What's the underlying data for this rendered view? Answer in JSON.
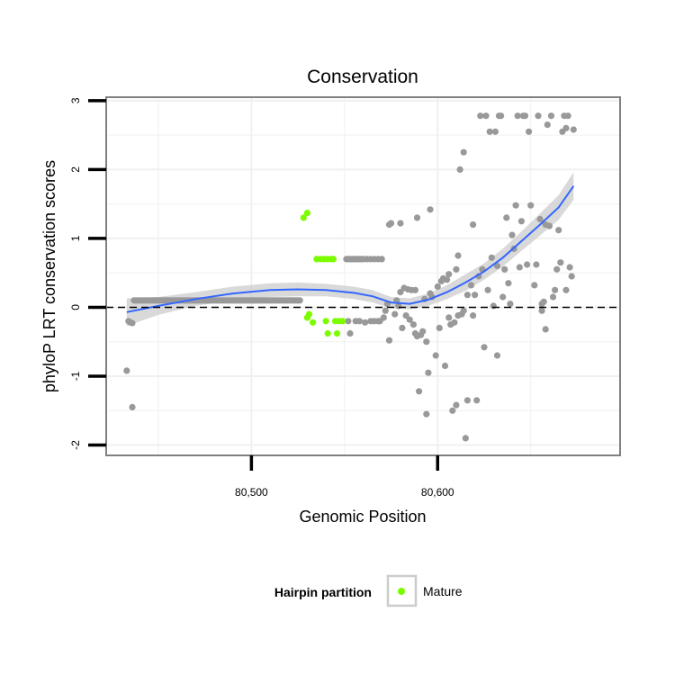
{
  "chart_data": {
    "type": "scatter",
    "title": "Conservation",
    "xlabel": "Genomic Position",
    "ylabel": "phyloP LRT conservation scores",
    "xlim": [
      80422,
      80698
    ],
    "ylim": [
      -2.15,
      3.05
    ],
    "x_ticks": [
      80500,
      80600
    ],
    "x_tick_labels": [
      "80,500",
      "80,600"
    ],
    "y_ticks": [
      -2,
      -1,
      0,
      1,
      2,
      3
    ],
    "y_tick_labels": [
      "-2",
      "-1",
      "0",
      "1",
      "2",
      "3"
    ],
    "grid": true,
    "reference_line": {
      "y": 0,
      "style": "dashed"
    },
    "legend": {
      "title": "Hairpin partition",
      "position": "bottom",
      "entries": [
        "Mature"
      ]
    },
    "colors": {
      "other": "#999999",
      "mature": "#7cfc00",
      "smooth": "#3366ff",
      "ribbon": "#cccccc",
      "panel_border": "#808080"
    },
    "series": [
      {
        "role": "other",
        "color": "#999999",
        "points": [
          [
            80433,
            -0.92
          ],
          [
            80434,
            -0.2
          ],
          [
            80435,
            -0.22
          ],
          [
            80436,
            -0.23
          ],
          [
            80436,
            -1.45
          ],
          [
            80437,
            0.1
          ],
          [
            80438,
            0.1
          ],
          [
            80439,
            0.1
          ],
          [
            80440,
            0.1
          ],
          [
            80441,
            0.1
          ],
          [
            80442,
            0.1
          ],
          [
            80443,
            0.1
          ],
          [
            80444,
            0.1
          ],
          [
            80445,
            0.1
          ],
          [
            80446,
            0.1
          ],
          [
            80447,
            0.1
          ],
          [
            80448,
            0.1
          ],
          [
            80449,
            0.1
          ],
          [
            80450,
            0.1
          ],
          [
            80451,
            0.1
          ],
          [
            80452,
            0.1
          ],
          [
            80453,
            0.1
          ],
          [
            80454,
            0.1
          ],
          [
            80455,
            0.1
          ],
          [
            80456,
            0.1
          ],
          [
            80457,
            0.1
          ],
          [
            80458,
            0.1
          ],
          [
            80459,
            0.1
          ],
          [
            80460,
            0.1
          ],
          [
            80461,
            0.1
          ],
          [
            80462,
            0.1
          ],
          [
            80463,
            0.1
          ],
          [
            80464,
            0.1
          ],
          [
            80465,
            0.1
          ],
          [
            80466,
            0.1
          ],
          [
            80467,
            0.1
          ],
          [
            80468,
            0.1
          ],
          [
            80469,
            0.1
          ],
          [
            80470,
            0.1
          ],
          [
            80471,
            0.1
          ],
          [
            80472,
            0.1
          ],
          [
            80473,
            0.1
          ],
          [
            80474,
            0.1
          ],
          [
            80475,
            0.1
          ],
          [
            80476,
            0.1
          ],
          [
            80477,
            0.1
          ],
          [
            80478,
            0.1
          ],
          [
            80479,
            0.1
          ],
          [
            80480,
            0.1
          ],
          [
            80481,
            0.1
          ],
          [
            80482,
            0.1
          ],
          [
            80483,
            0.1
          ],
          [
            80484,
            0.1
          ],
          [
            80485,
            0.1
          ],
          [
            80486,
            0.1
          ],
          [
            80487,
            0.1
          ],
          [
            80488,
            0.1
          ],
          [
            80489,
            0.1
          ],
          [
            80490,
            0.1
          ],
          [
            80491,
            0.1
          ],
          [
            80492,
            0.1
          ],
          [
            80493,
            0.1
          ],
          [
            80494,
            0.1
          ],
          [
            80495,
            0.1
          ],
          [
            80496,
            0.1
          ],
          [
            80497,
            0.1
          ],
          [
            80498,
            0.1
          ],
          [
            80499,
            0.1
          ],
          [
            80500,
            0.1
          ],
          [
            80501,
            0.1
          ],
          [
            80502,
            0.1
          ],
          [
            80503,
            0.1
          ],
          [
            80504,
            0.1
          ],
          [
            80505,
            0.1
          ],
          [
            80506,
            0.1
          ],
          [
            80507,
            0.1
          ],
          [
            80508,
            0.1
          ],
          [
            80509,
            0.1
          ],
          [
            80510,
            0.1
          ],
          [
            80511,
            0.1
          ],
          [
            80512,
            0.1
          ],
          [
            80513,
            0.1
          ],
          [
            80514,
            0.1
          ],
          [
            80515,
            0.1
          ],
          [
            80516,
            0.1
          ],
          [
            80517,
            0.1
          ],
          [
            80518,
            0.1
          ],
          [
            80519,
            0.1
          ],
          [
            80520,
            0.1
          ],
          [
            80521,
            0.1
          ],
          [
            80522,
            0.1
          ],
          [
            80523,
            0.1
          ],
          [
            80524,
            0.1
          ],
          [
            80525,
            0.1
          ],
          [
            80526,
            0.1
          ],
          [
            80551,
            0.7
          ],
          [
            80552,
            0.7
          ],
          [
            80553,
            0.7
          ],
          [
            80554,
            0.7
          ],
          [
            80555,
            0.7
          ],
          [
            80556,
            0.7
          ],
          [
            80557,
            0.7
          ],
          [
            80558,
            0.7
          ],
          [
            80559,
            0.7
          ],
          [
            80560,
            0.7
          ],
          [
            80562,
            0.7
          ],
          [
            80564,
            0.7
          ],
          [
            80566,
            0.7
          ],
          [
            80568,
            0.7
          ],
          [
            80570,
            0.7
          ],
          [
            80552,
            -0.2
          ],
          [
            80553,
            -0.38
          ],
          [
            80556,
            -0.2
          ],
          [
            80558,
            -0.2
          ],
          [
            80561,
            -0.22
          ],
          [
            80564,
            -0.2
          ],
          [
            80566,
            -0.2
          ],
          [
            80568,
            -0.2
          ],
          [
            80569,
            -0.2
          ],
          [
            80571,
            -0.15
          ],
          [
            80572,
            -0.05
          ],
          [
            80573,
            0.05
          ],
          [
            80574,
            -0.48
          ],
          [
            80574,
            1.2
          ],
          [
            80575,
            1.22
          ],
          [
            80577,
            -0.1
          ],
          [
            80578,
            0.1
          ],
          [
            80579,
            0.02
          ],
          [
            80580,
            0.22
          ],
          [
            80580,
            1.22
          ],
          [
            80581,
            -0.3
          ],
          [
            80582,
            0.28
          ],
          [
            80583,
            -0.12
          ],
          [
            80584,
            0.26
          ],
          [
            80585,
            -0.18
          ],
          [
            80586,
            0.25
          ],
          [
            80587,
            -0.25
          ],
          [
            80588,
            0.25
          ],
          [
            80588,
            -0.38
          ],
          [
            80589,
            -0.42
          ],
          [
            80589,
            1.3
          ],
          [
            80590,
            -1.22
          ],
          [
            80591,
            -0.4
          ],
          [
            80592,
            -0.35
          ],
          [
            80593,
            0.12
          ],
          [
            80594,
            -0.5
          ],
          [
            80594,
            -1.55
          ],
          [
            80595,
            -0.95
          ],
          [
            80596,
            0.2
          ],
          [
            80596,
            1.42
          ],
          [
            80597,
            0.15
          ],
          [
            80599,
            -0.7
          ],
          [
            80600,
            0.3
          ],
          [
            80601,
            -0.3
          ],
          [
            80602,
            0.38
          ],
          [
            80603,
            0.42
          ],
          [
            80604,
            -0.85
          ],
          [
            80605,
            0.4
          ],
          [
            80606,
            0.48
          ],
          [
            80606,
            -0.15
          ],
          [
            80607,
            -0.25
          ],
          [
            80608,
            -1.5
          ],
          [
            80609,
            -0.22
          ],
          [
            80610,
            -1.42
          ],
          [
            80610,
            0.55
          ],
          [
            80611,
            0.75
          ],
          [
            80611,
            -0.12
          ],
          [
            80612,
            2.0
          ],
          [
            80613,
            -0.1
          ],
          [
            80614,
            2.25
          ],
          [
            80614,
            -0.05
          ],
          [
            80615,
            -1.9
          ],
          [
            80616,
            0.18
          ],
          [
            80616,
            -1.35
          ],
          [
            80618,
            0.32
          ],
          [
            80619,
            1.2
          ],
          [
            80619,
            -0.12
          ],
          [
            80620,
            0.18
          ],
          [
            80621,
            -1.35
          ],
          [
            80622,
            0.45
          ],
          [
            80623,
            2.78
          ],
          [
            80624,
            0.55
          ],
          [
            80625,
            -0.58
          ],
          [
            80626,
            2.78
          ],
          [
            80627,
            0.25
          ],
          [
            80628,
            2.55
          ],
          [
            80629,
            0.72
          ],
          [
            80630,
            0.02
          ],
          [
            80631,
            2.55
          ],
          [
            80632,
            -0.7
          ],
          [
            80632,
            0.6
          ],
          [
            80633,
            2.78
          ],
          [
            80634,
            2.78
          ],
          [
            80635,
            0.15
          ],
          [
            80636,
            0.55
          ],
          [
            80637,
            1.3
          ],
          [
            80638,
            0.35
          ],
          [
            80639,
            0.05
          ],
          [
            80640,
            1.05
          ],
          [
            80641,
            0.85
          ],
          [
            80642,
            1.48
          ],
          [
            80643,
            2.78
          ],
          [
            80644,
            0.58
          ],
          [
            80645,
            1.25
          ],
          [
            80646,
            2.78
          ],
          [
            80647,
            2.78
          ],
          [
            80648,
            0.62
          ],
          [
            80649,
            2.55
          ],
          [
            80650,
            1.48
          ],
          [
            80652,
            0.32
          ],
          [
            80653,
            0.62
          ],
          [
            80654,
            2.78
          ],
          [
            80655,
            1.28
          ],
          [
            80656,
            -0.05
          ],
          [
            80656,
            0.05
          ],
          [
            80657,
            0.08
          ],
          [
            80658,
            -0.32
          ],
          [
            80658,
            1.2
          ],
          [
            80659,
            2.65
          ],
          [
            80660,
            1.18
          ],
          [
            80661,
            2.78
          ],
          [
            80662,
            0.15
          ],
          [
            80663,
            0.25
          ],
          [
            80664,
            0.55
          ],
          [
            80665,
            1.12
          ],
          [
            80666,
            0.65
          ],
          [
            80667,
            2.55
          ],
          [
            80668,
            2.78
          ],
          [
            80669,
            2.6
          ],
          [
            80669,
            0.25
          ],
          [
            80670,
            2.78
          ],
          [
            80671,
            0.58
          ],
          [
            80672,
            0.45
          ],
          [
            80673,
            2.58
          ]
        ]
      },
      {
        "name": "Mature",
        "color": "#7cfc00",
        "points": [
          [
            80528,
            1.3
          ],
          [
            80530,
            1.37
          ],
          [
            80530,
            -0.15
          ],
          [
            80531,
            -0.1
          ],
          [
            80533,
            -0.22
          ],
          [
            80535,
            0.7
          ],
          [
            80537,
            0.7
          ],
          [
            80539,
            0.7
          ],
          [
            80540,
            -0.2
          ],
          [
            80541,
            0.7
          ],
          [
            80541,
            -0.38
          ],
          [
            80543,
            0.7
          ],
          [
            80544,
            0.7
          ],
          [
            80545,
            -0.2
          ],
          [
            80546,
            -0.38
          ],
          [
            80547,
            -0.2
          ],
          [
            80549,
            -0.2
          ]
        ]
      }
    ],
    "smooth": {
      "method": "loess",
      "color": "#3366ff",
      "fit": [
        [
          80433,
          -0.07
        ],
        [
          80450,
          0.02
        ],
        [
          80470,
          0.12
        ],
        [
          80490,
          0.2
        ],
        [
          80510,
          0.25
        ],
        [
          80525,
          0.26
        ],
        [
          80540,
          0.25
        ],
        [
          80555,
          0.21
        ],
        [
          80565,
          0.16
        ],
        [
          80575,
          0.07
        ],
        [
          80585,
          0.05
        ],
        [
          80595,
          0.11
        ],
        [
          80605,
          0.22
        ],
        [
          80615,
          0.36
        ],
        [
          80625,
          0.52
        ],
        [
          80635,
          0.72
        ],
        [
          80645,
          0.96
        ],
        [
          80655,
          1.2
        ],
        [
          80665,
          1.45
        ],
        [
          80673,
          1.76
        ]
      ],
      "band_half_width": [
        0.2,
        0.13,
        0.1,
        0.1,
        0.1,
        0.1,
        0.09,
        0.09,
        0.09,
        0.08,
        0.08,
        0.09,
        0.1,
        0.12,
        0.12,
        0.13,
        0.14,
        0.16,
        0.18,
        0.2
      ]
    }
  }
}
